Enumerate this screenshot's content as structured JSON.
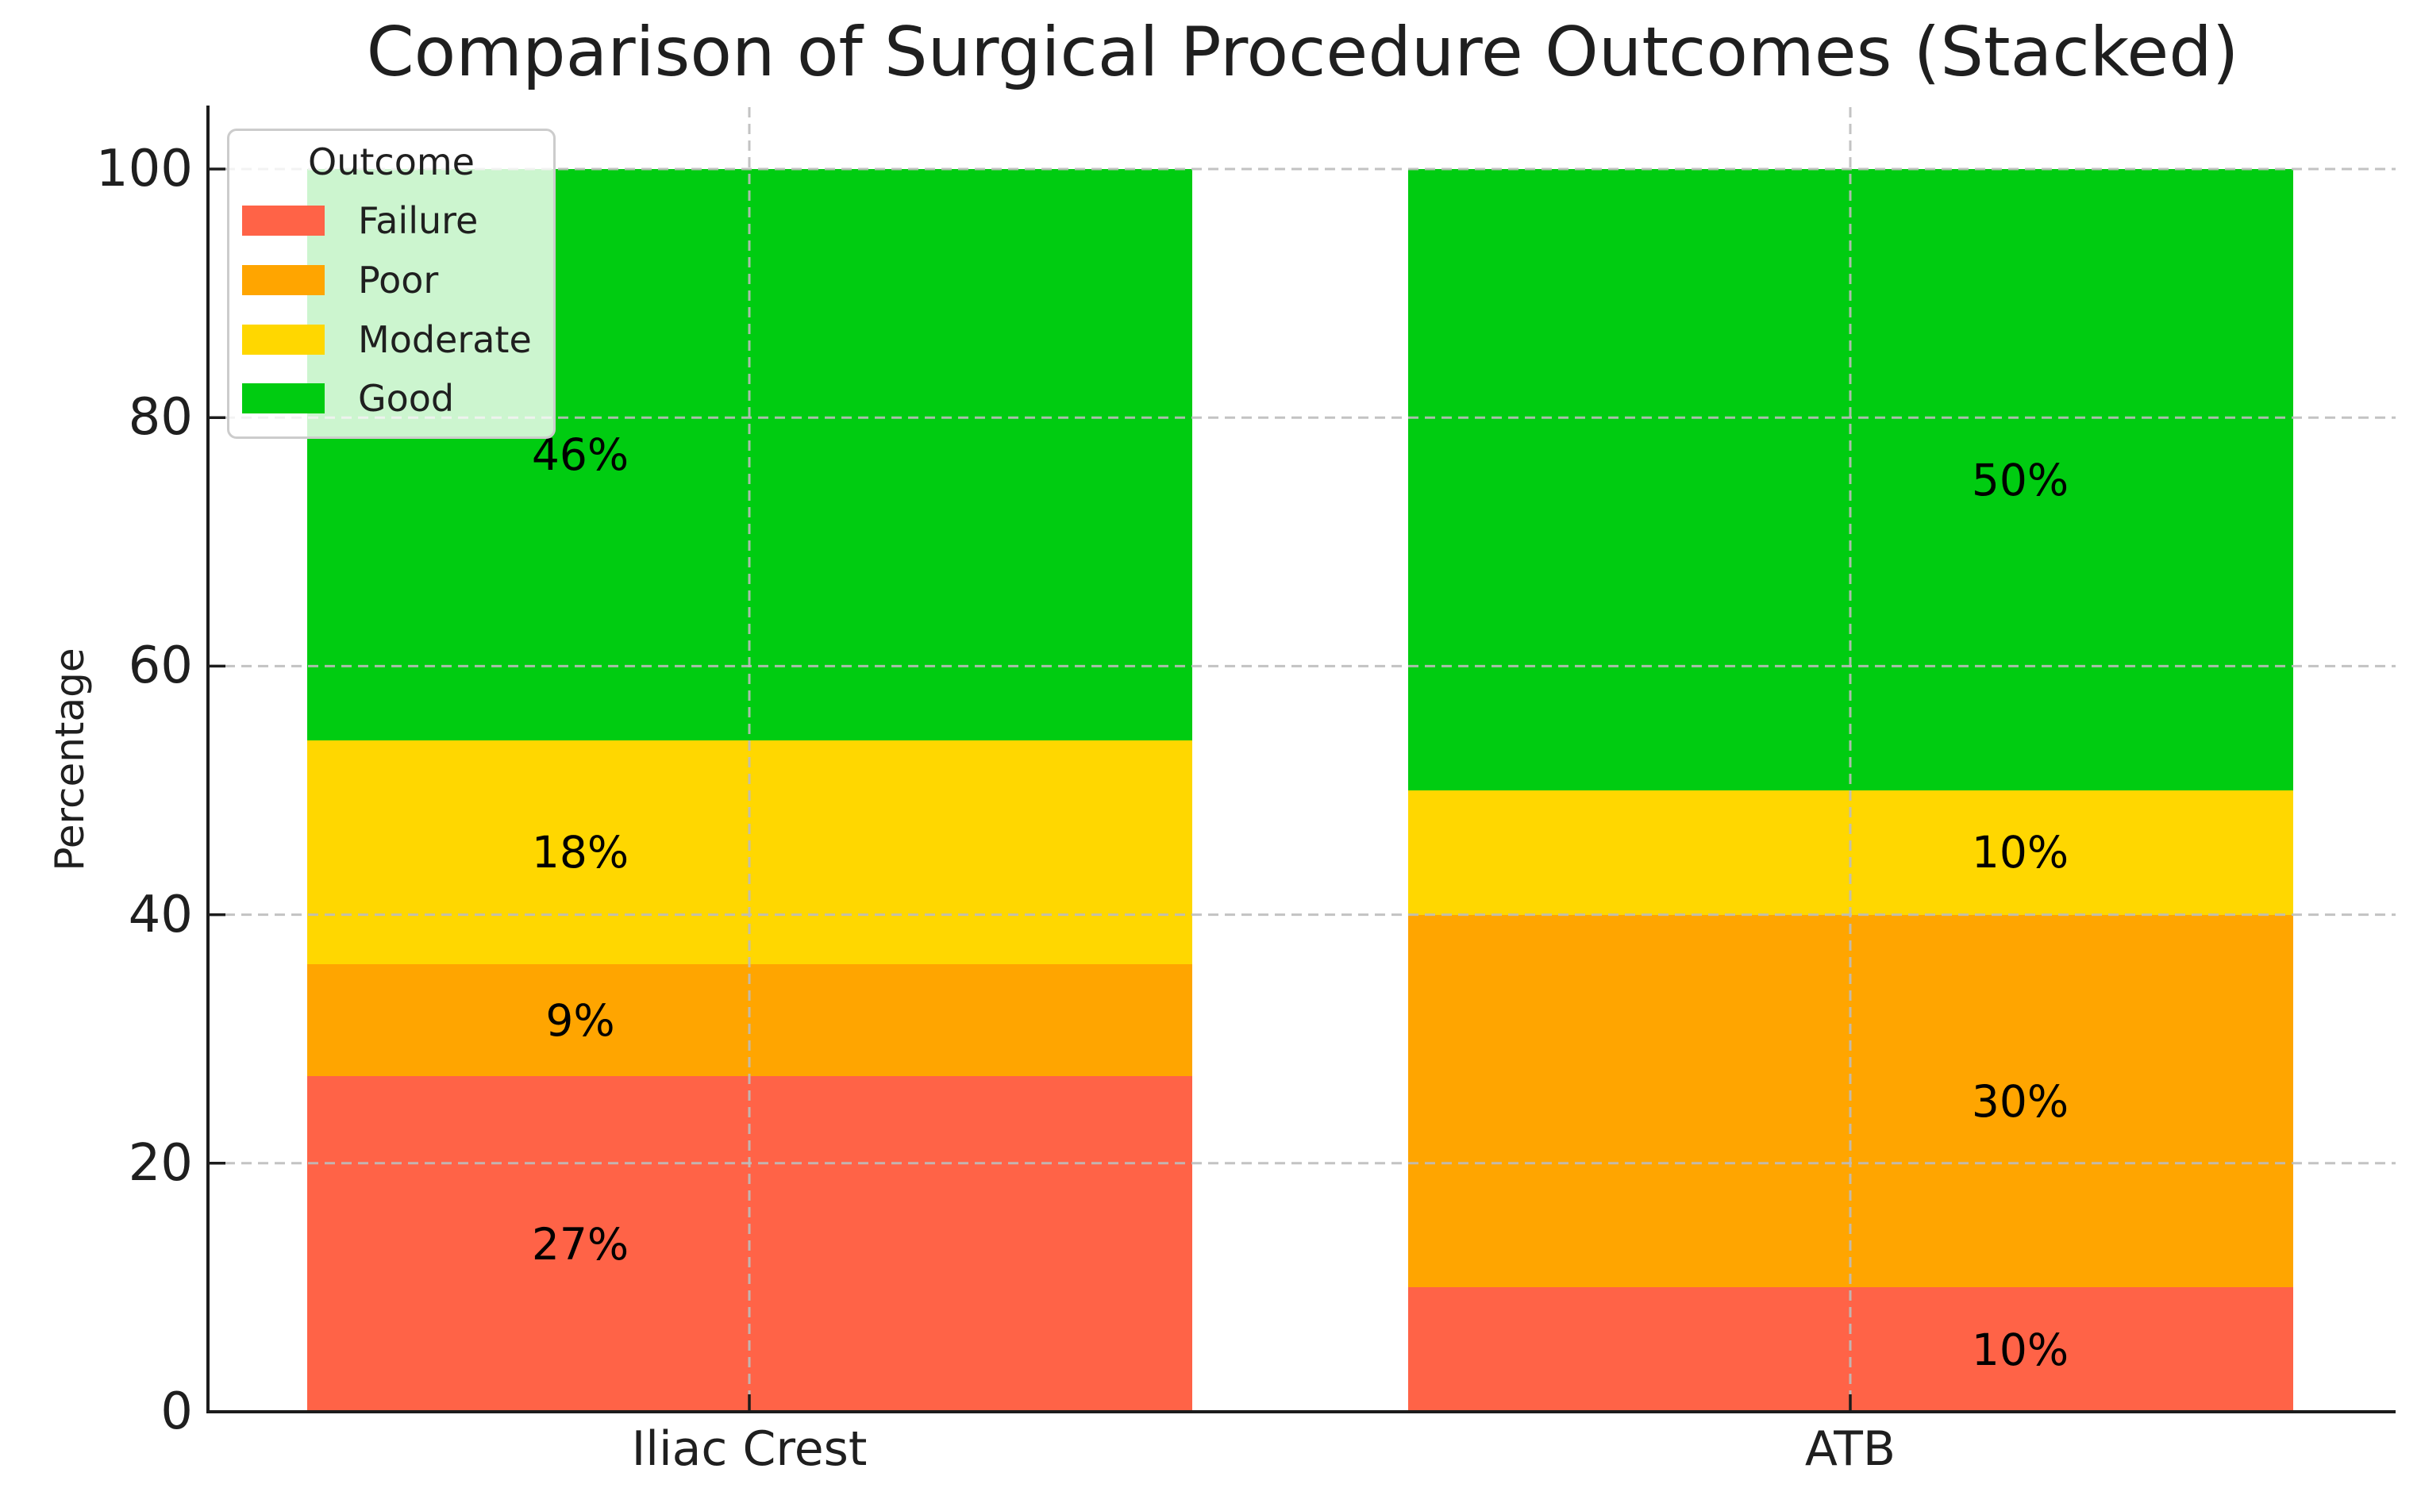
{
  "chart_data": {
    "type": "bar",
    "stacked": true,
    "title": "Comparison of Surgical Procedure Outcomes (Stacked)",
    "xlabel": "",
    "ylabel": "Percentage",
    "categories": [
      "Iliac Crest",
      "ATB"
    ],
    "series": [
      {
        "name": "Failure",
        "color": "#FF6347",
        "values": [
          27,
          10
        ],
        "labels": [
          "27%",
          "10%"
        ]
      },
      {
        "name": "Poor",
        "color": "#FFA500",
        "values": [
          9,
          30
        ],
        "labels": [
          "9%",
          "30%"
        ]
      },
      {
        "name": "Moderate",
        "color": "#FFD700",
        "values": [
          18,
          10
        ],
        "labels": [
          "18%",
          "10%"
        ]
      },
      {
        "name": "Good",
        "color": "#00CC11",
        "values": [
          46,
          50
        ],
        "labels": [
          "46%",
          "50%"
        ]
      }
    ],
    "ylim": [
      0,
      100
    ],
    "yticks": [
      0,
      20,
      40,
      60,
      80,
      100
    ],
    "ytick_labels": [
      "0",
      "20",
      "40",
      "60",
      "80",
      "100"
    ],
    "legend": {
      "title": "Outcome",
      "position": "upper-left"
    },
    "grid": {
      "horizontal": true,
      "vertical": true,
      "style": "dashed",
      "color": "#bcbcbc"
    },
    "text_color": "#1f1f1f",
    "background_color": "#ffffff"
  }
}
